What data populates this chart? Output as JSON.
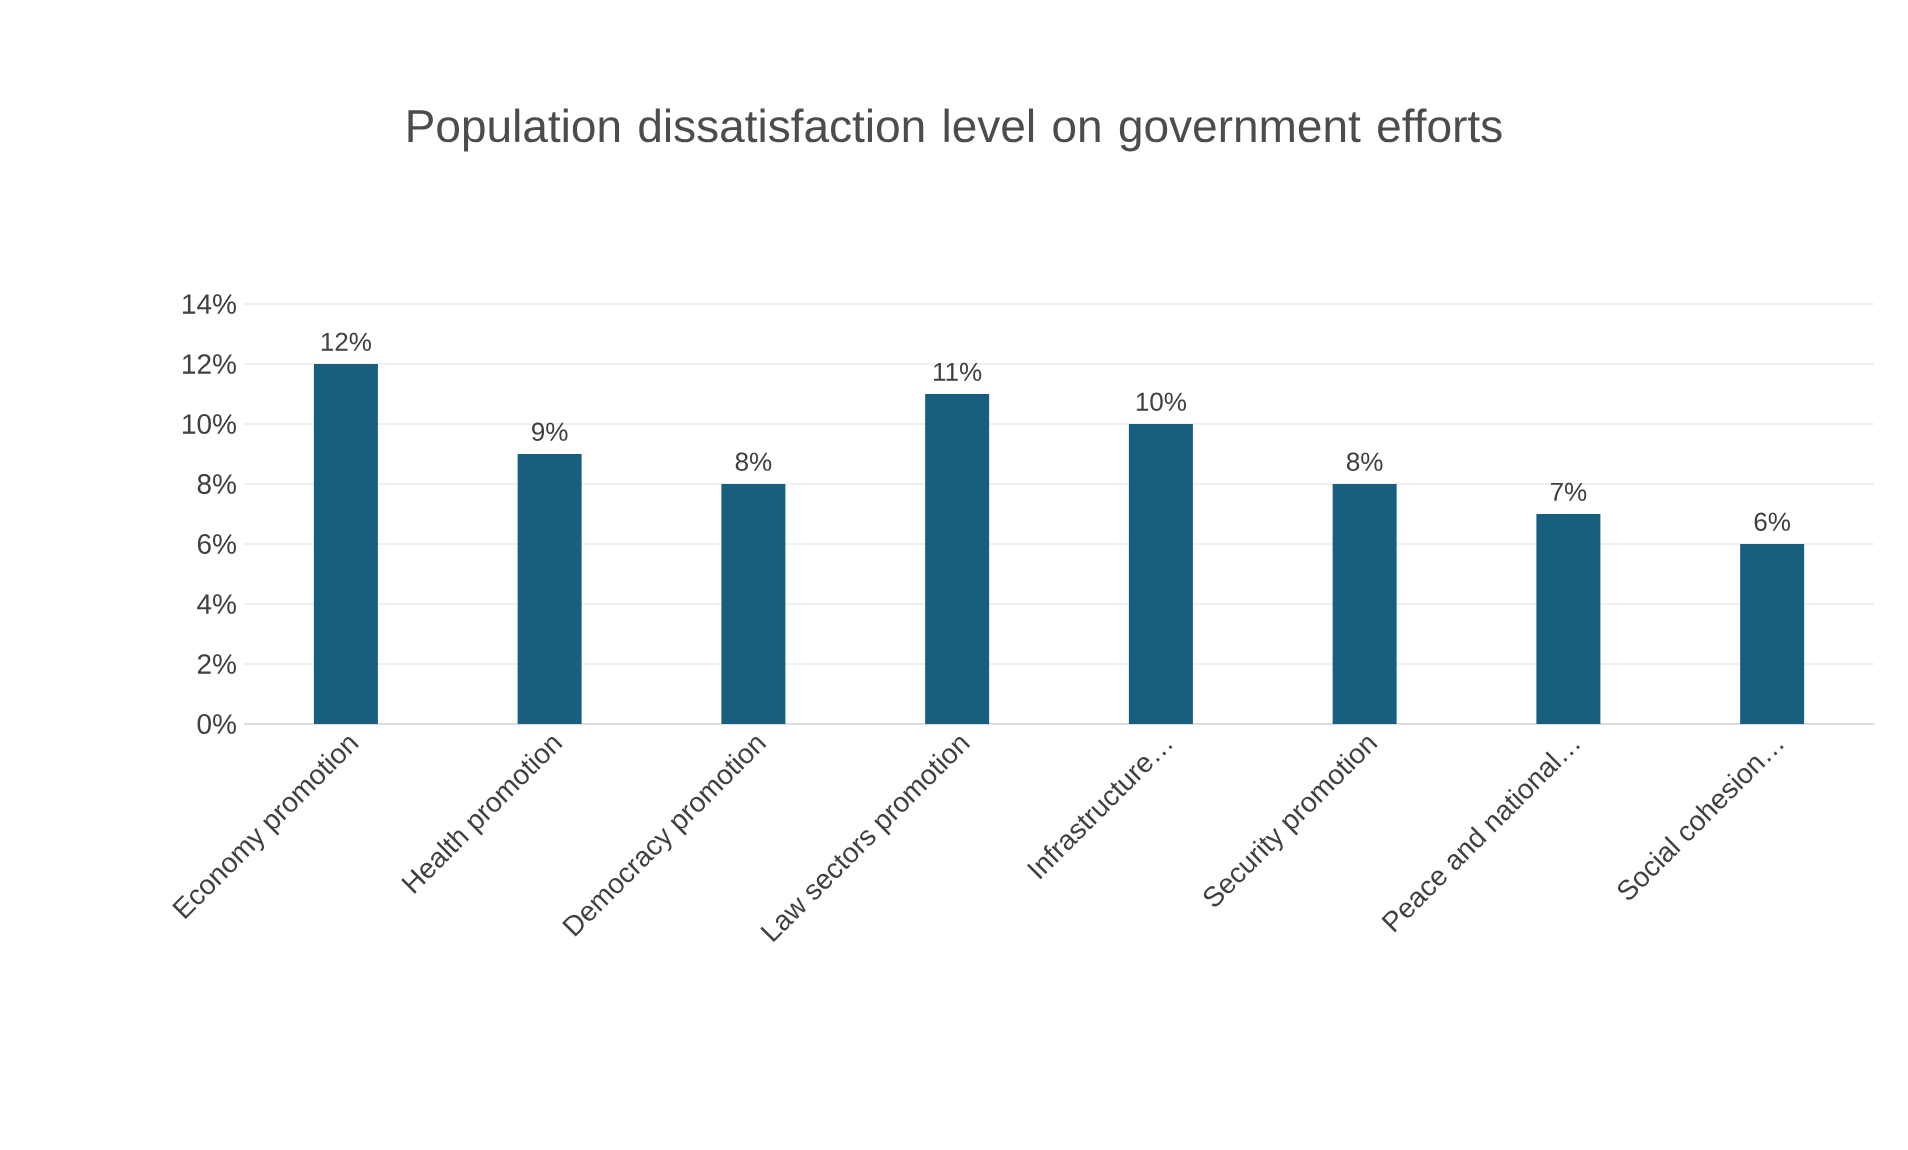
{
  "chart_data": {
    "type": "bar",
    "title": "Population dissatisfaction level on government efforts",
    "categories": [
      "Economy promotion",
      "Health promotion",
      "Democracy promotion",
      "Law sectors promotion",
      "Infrastructure…",
      "Security promotion",
      "Peace and national…",
      "Social cohesion…"
    ],
    "values": [
      12,
      9,
      8,
      11,
      10,
      8,
      7,
      6
    ],
    "value_labels": [
      "12%",
      "9%",
      "8%",
      "11%",
      "10%",
      "8%",
      "7%",
      "6%"
    ],
    "color": "#175e7f",
    "ylim": [
      0,
      14
    ],
    "yticks": [
      {
        "value": 0,
        "label": "0%"
      },
      {
        "value": 2,
        "label": "2%"
      },
      {
        "value": 4,
        "label": "4%"
      },
      {
        "value": 6,
        "label": "6%"
      },
      {
        "value": 8,
        "label": "8%"
      },
      {
        "value": 10,
        "label": "10%"
      },
      {
        "value": 12,
        "label": "12%"
      },
      {
        "value": 14,
        "label": "14%"
      }
    ],
    "grid": "y"
  }
}
